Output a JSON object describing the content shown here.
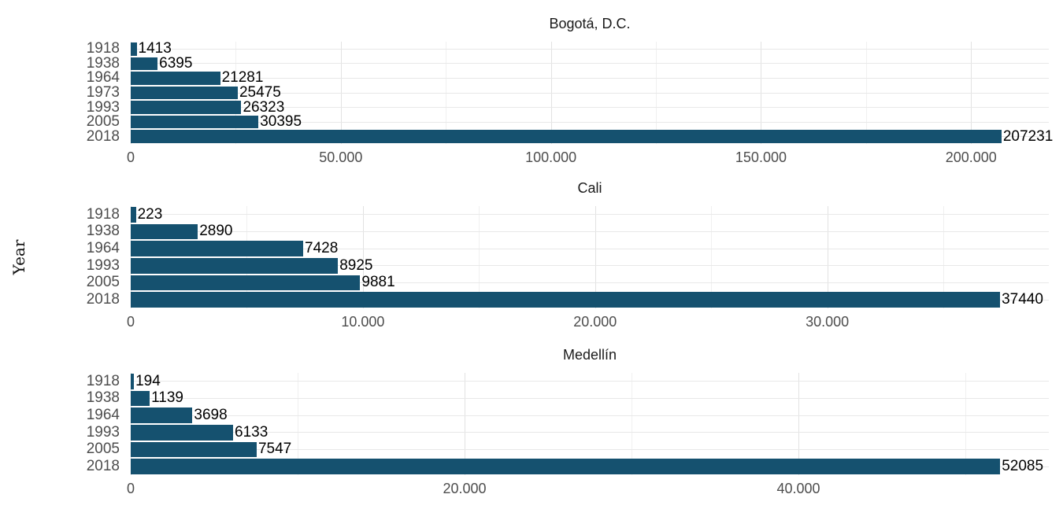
{
  "figure": {
    "ylabel": "Year",
    "bar_color": "#15516f",
    "background": "#ffffff",
    "grid_major_color": "#e2e2e2",
    "grid_minor_color": "#f0f0f0"
  },
  "chart_data": [
    {
      "type": "bar",
      "orientation": "horizontal",
      "title": "Bogotá, D.C.",
      "ylabel": "Year",
      "categories": [
        "1918",
        "1938",
        "1964",
        "1973",
        "1993",
        "2005",
        "2018"
      ],
      "values": [
        1413,
        6395,
        21281,
        25475,
        26323,
        30395,
        207231
      ],
      "value_labels": [
        "1413",
        "6395",
        "21281",
        "25475",
        "26323",
        "30395",
        "207231"
      ],
      "xlim": [
        0,
        218500
      ],
      "x_major_ticks": [
        0,
        50000,
        100000,
        150000,
        200000
      ],
      "x_major_tick_labels": [
        "0",
        "50.000",
        "100.000",
        "150.000",
        "200.000"
      ],
      "x_minor_ticks": [
        25000,
        75000,
        125000,
        175000
      ],
      "grid": true,
      "legend": false
    },
    {
      "type": "bar",
      "orientation": "horizontal",
      "title": "Cali",
      "ylabel": "Year",
      "categories": [
        "1918",
        "1938",
        "1964",
        "1993",
        "2005",
        "2018"
      ],
      "values": [
        223,
        2890,
        7428,
        8925,
        9881,
        37440
      ],
      "value_labels": [
        "223",
        "2890",
        "7428",
        "8925",
        "9881",
        "37440"
      ],
      "xlim": [
        0,
        39540
      ],
      "x_major_ticks": [
        0,
        10000,
        20000,
        30000
      ],
      "x_major_tick_labels": [
        "0",
        "10.000",
        "20.000",
        "30.000"
      ],
      "x_minor_ticks": [
        5000,
        15000,
        25000,
        35000
      ],
      "grid": true,
      "legend": false
    },
    {
      "type": "bar",
      "orientation": "horizontal",
      "title": "Medellín",
      "ylabel": "Year",
      "categories": [
        "1918",
        "1938",
        "1964",
        "1993",
        "2005",
        "2018"
      ],
      "values": [
        194,
        1139,
        3698,
        6133,
        7547,
        52085
      ],
      "value_labels": [
        "194",
        "1139",
        "3698",
        "6133",
        "7547",
        "52085"
      ],
      "xlim": [
        0,
        55000
      ],
      "x_major_ticks": [
        0,
        20000,
        40000
      ],
      "x_major_tick_labels": [
        "0",
        "20.000",
        "40.000"
      ],
      "x_minor_ticks": [
        10000,
        30000,
        50000
      ],
      "grid": true,
      "legend": false
    }
  ]
}
